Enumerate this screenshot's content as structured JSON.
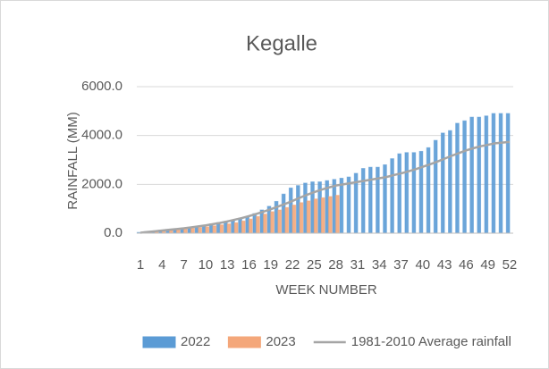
{
  "chart_data": {
    "type": "bar",
    "title": "Kegalle",
    "x_label": "WEEK NUMBER",
    "y_label": "RAINFALL (MM)",
    "categories": [
      "1",
      null,
      null,
      "4",
      null,
      null,
      "7",
      null,
      null,
      "10",
      null,
      null,
      "13",
      null,
      null,
      "16",
      null,
      null,
      "19",
      null,
      null,
      "22",
      null,
      null,
      "25",
      null,
      null,
      "28",
      null,
      null,
      "31",
      null,
      null,
      "34",
      null,
      null,
      "37",
      null,
      null,
      "40",
      null,
      null,
      "43",
      null,
      null,
      "46",
      null,
      null,
      "49",
      null,
      null,
      "52"
    ],
    "series": [
      {
        "name": "2022",
        "type": "bar",
        "color": "#5b9bd5",
        "values": [
          30,
          60,
          90,
          120,
          150,
          180,
          200,
          230,
          270,
          330,
          380,
          430,
          480,
          530,
          600,
          680,
          800,
          950,
          1100,
          1300,
          1600,
          1850,
          1950,
          2050,
          2100,
          2100,
          2150,
          2200,
          2250,
          2300,
          2450,
          2650,
          2700,
          2700,
          2800,
          3050,
          3250,
          3300,
          3300,
          3350,
          3500,
          3800,
          4100,
          4200,
          4500,
          4600,
          4750,
          4750,
          4800,
          4900,
          4900,
          4900
        ]
      },
      {
        "name": "2023",
        "type": "bar",
        "color": "#f4a77a",
        "values": [
          20,
          40,
          70,
          100,
          130,
          160,
          180,
          200,
          230,
          260,
          300,
          340,
          380,
          430,
          500,
          580,
          680,
          780,
          880,
          950,
          1050,
          1150,
          1250,
          1320,
          1400,
          1450,
          1500,
          1550,
          null,
          null,
          null,
          null,
          null,
          null,
          null,
          null,
          null,
          null,
          null,
          null,
          null,
          null,
          null,
          null,
          null,
          null,
          null,
          null,
          null,
          null,
          null,
          null
        ]
      },
      {
        "name": "1981-2010 Average rainfall",
        "type": "line",
        "color": "#a5a5a5",
        "values": [
          20,
          50,
          80,
          110,
          140,
          170,
          200,
          240,
          280,
          320,
          370,
          420,
          480,
          550,
          620,
          700,
          790,
          880,
          980,
          1090,
          1200,
          1320,
          1450,
          1570,
          1680,
          1780,
          1870,
          1950,
          2000,
          2050,
          2100,
          2150,
          2200,
          2250,
          2300,
          2380,
          2450,
          2530,
          2620,
          2720,
          2820,
          2930,
          3050,
          3170,
          3280,
          3390,
          3480,
          3560,
          3620,
          3680,
          3710,
          3740
        ]
      }
    ],
    "ylim": [
      0,
      6000
    ],
    "yticks": [
      {
        "value": 0,
        "label": "0.0"
      },
      {
        "value": 2000,
        "label": "2000.0"
      },
      {
        "value": 4000,
        "label": "4000.0"
      },
      {
        "value": 6000,
        "label": "6000.0"
      }
    ],
    "grid": true,
    "legend": "bottom"
  }
}
